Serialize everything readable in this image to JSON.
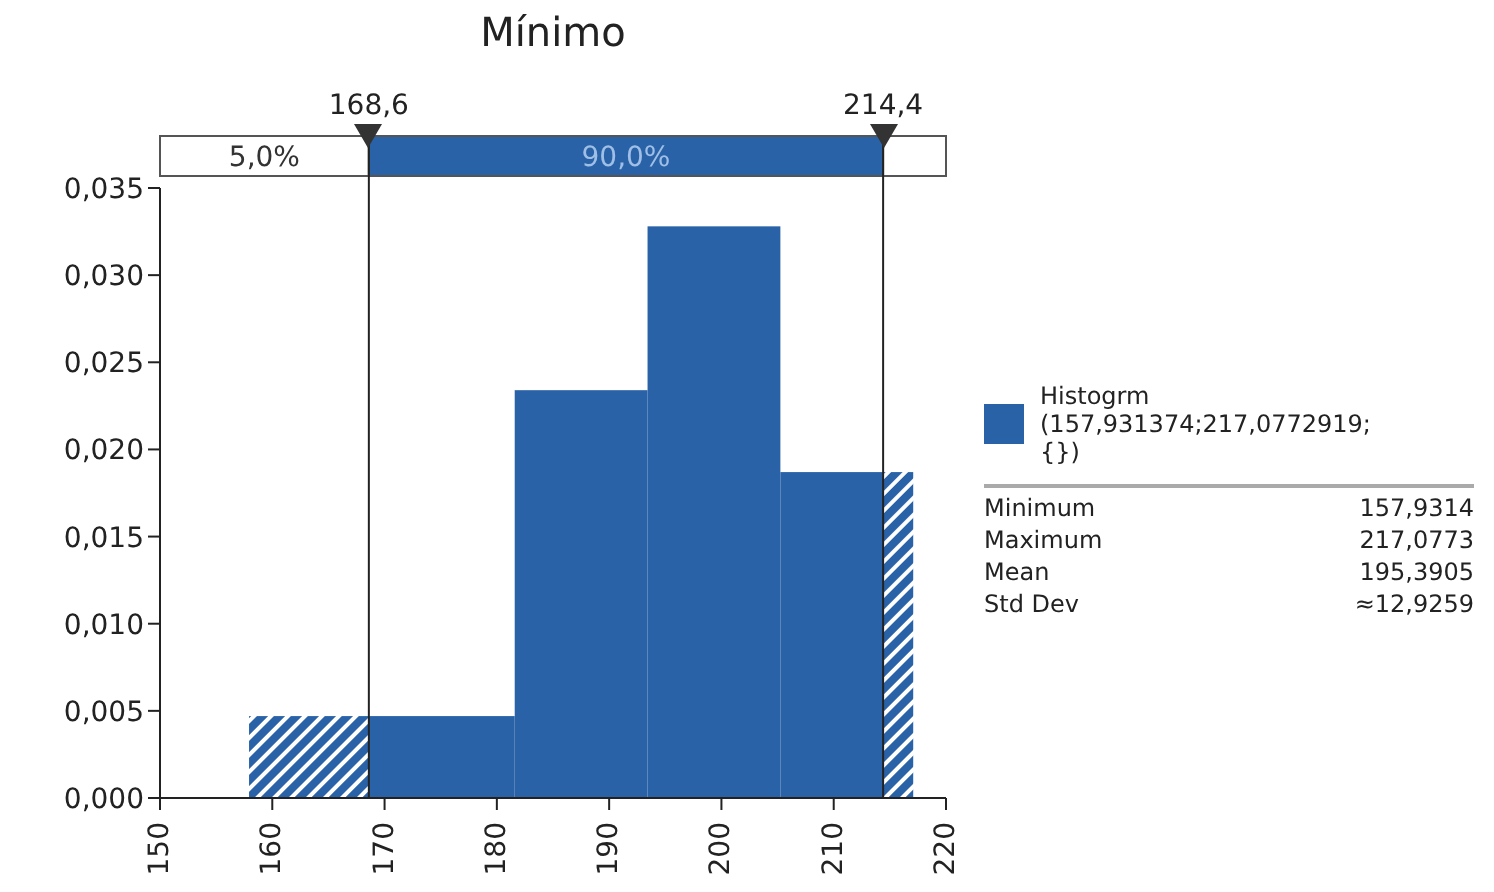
{
  "chart_data": {
    "type": "histogram",
    "title": "Mínimo",
    "bins": [
      157.93,
      181.59,
      193.42,
      205.25,
      217.08
    ],
    "series": [
      {
        "name": "Histogrm (157,931374;217,0772919; {})",
        "color": "#2a62a8",
        "values": [
          0.0047,
          0.0234,
          0.0328,
          0.0187
        ]
      }
    ],
    "xlim": [
      150,
      220
    ],
    "xticks": [
      150,
      160,
      170,
      180,
      190,
      200,
      210,
      220
    ],
    "ylim": [
      0,
      0.035
    ],
    "yticks": [
      {
        "value": 0,
        "label": "0,000"
      },
      {
        "value": 0.005,
        "label": "0,005"
      },
      {
        "value": 0.01,
        "label": "0,010"
      },
      {
        "value": 0.015,
        "label": "0,015"
      },
      {
        "value": 0.02,
        "label": "0,020"
      },
      {
        "value": 0.025,
        "label": "0,025"
      },
      {
        "value": 0.03,
        "label": "0,030"
      },
      {
        "value": 0.035,
        "label": "0,035"
      }
    ],
    "ref_lines": [
      {
        "axis": "x",
        "value": 168.6,
        "label": "168,6",
        "color": "#222222"
      },
      {
        "axis": "x",
        "value": 214.4,
        "label": "214,4",
        "color": "#222222"
      }
    ],
    "legend": "right",
    "annotations": [
      "5,0%",
      "90,0%",
      "Minimum",
      "157,9314",
      "Maximum",
      "217,0773",
      "Mean",
      "195,3905",
      "Std Dev",
      "≈12,9259"
    ]
  }
}
